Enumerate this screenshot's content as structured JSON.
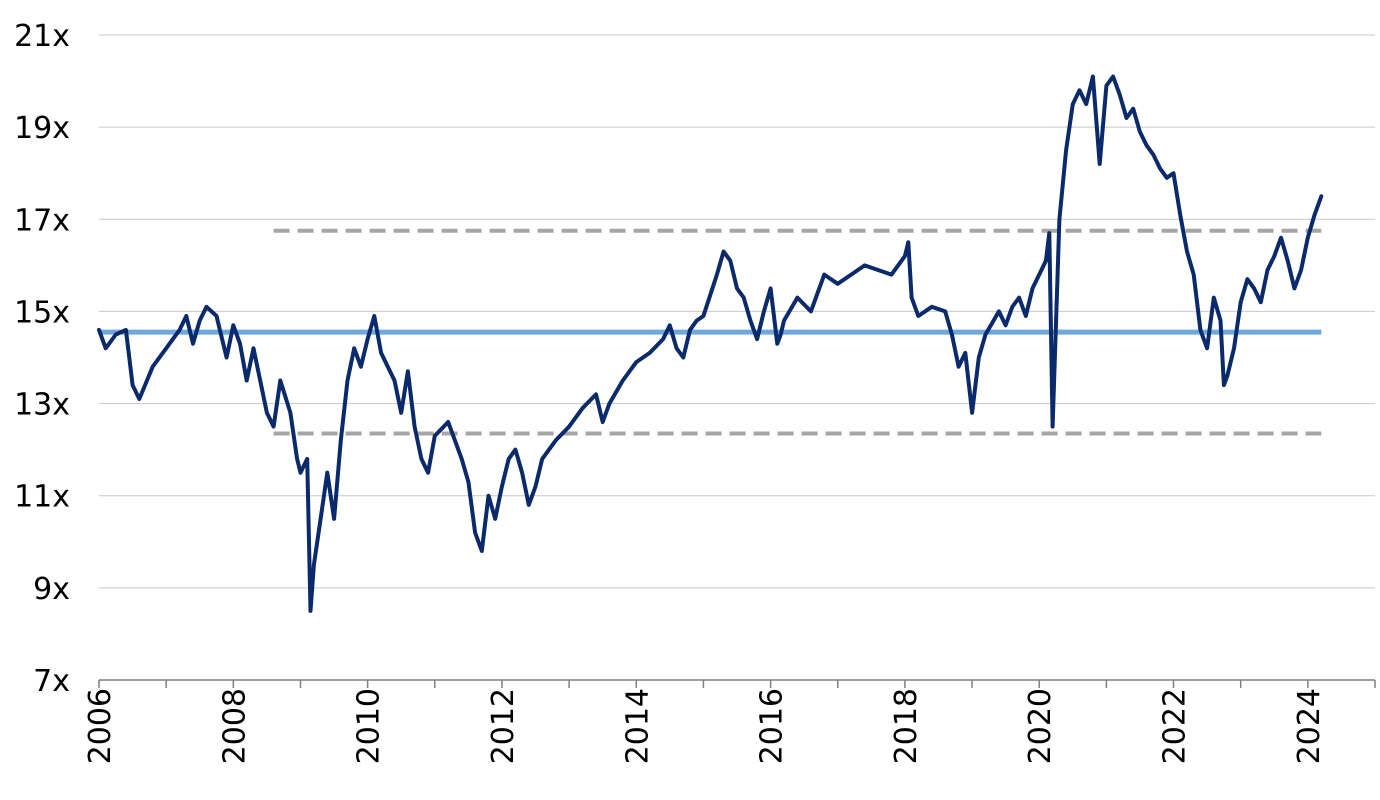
{
  "chart_data": {
    "type": "line",
    "title": "",
    "xlabel": "",
    "ylabel": "",
    "xlim": [
      2006,
      2025
    ],
    "ylim": [
      7,
      21
    ],
    "y_ticks": [
      7,
      9,
      11,
      13,
      15,
      17,
      19,
      21
    ],
    "y_tick_labels": [
      "7x",
      "9x",
      "11x",
      "13x",
      "15x",
      "17x",
      "19x",
      "21x"
    ],
    "x_ticks": [
      2006,
      2008,
      2010,
      2012,
      2014,
      2016,
      2018,
      2020,
      2022,
      2024
    ],
    "x_tick_labels": [
      "2006",
      "2008",
      "2010",
      "2012",
      "2014",
      "2016",
      "2018",
      "2020",
      "2022",
      "2024"
    ],
    "grid": "horizontal",
    "legend": "none",
    "reference_lines": [
      {
        "role": "average",
        "y": 14.55,
        "style": "solid",
        "color": "#6fa8dc"
      },
      {
        "role": "upper band",
        "y": 16.75,
        "style": "dashed",
        "color": "#a6a6a6"
      },
      {
        "role": "lower band",
        "y": 12.35,
        "style": "dashed",
        "color": "#a6a6a6"
      }
    ],
    "series": [
      {
        "color": "#0a2a6b",
        "x": [
          2006.0,
          2006.1,
          2006.25,
          2006.4,
          2006.5,
          2006.6,
          2006.8,
          2007.0,
          2007.1,
          2007.2,
          2007.3,
          2007.4,
          2007.5,
          2007.6,
          2007.75,
          2007.9,
          2008.0,
          2008.1,
          2008.2,
          2008.3,
          2008.5,
          2008.6,
          2008.7,
          2008.85,
          2008.95,
          2009.0,
          2009.1,
          2009.15,
          2009.2,
          2009.3,
          2009.4,
          2009.5,
          2009.6,
          2009.7,
          2009.8,
          2009.9,
          2010.0,
          2010.1,
          2010.2,
          2010.3,
          2010.4,
          2010.5,
          2010.6,
          2010.7,
          2010.8,
          2010.9,
          2011.0,
          2011.2,
          2011.4,
          2011.5,
          2011.6,
          2011.7,
          2011.8,
          2011.9,
          2012.0,
          2012.1,
          2012.2,
          2012.3,
          2012.4,
          2012.5,
          2012.6,
          2012.8,
          2013.0,
          2013.2,
          2013.4,
          2013.5,
          2013.6,
          2013.8,
          2014.0,
          2014.2,
          2014.4,
          2014.5,
          2014.6,
          2014.7,
          2014.8,
          2014.9,
          2015.0,
          2015.2,
          2015.3,
          2015.4,
          2015.5,
          2015.6,
          2015.7,
          2015.8,
          2015.9,
          2016.0,
          2016.1,
          2016.15,
          2016.2,
          2016.4,
          2016.6,
          2016.8,
          2017.0,
          2017.2,
          2017.4,
          2017.6,
          2017.8,
          2018.0,
          2018.05,
          2018.1,
          2018.2,
          2018.4,
          2018.6,
          2018.7,
          2018.8,
          2018.9,
          2019.0,
          2019.1,
          2019.2,
          2019.4,
          2019.5,
          2019.6,
          2019.7,
          2019.8,
          2019.9,
          2020.0,
          2020.1,
          2020.15,
          2020.2,
          2020.3,
          2020.4,
          2020.5,
          2020.6,
          2020.7,
          2020.8,
          2020.9,
          2021.0,
          2021.1,
          2021.2,
          2021.3,
          2021.4,
          2021.5,
          2021.6,
          2021.7,
          2021.8,
          2021.9,
          2022.0,
          2022.1,
          2022.2,
          2022.3,
          2022.4,
          2022.5,
          2022.6,
          2022.7,
          2022.75,
          2022.8,
          2022.9,
          2023.0,
          2023.1,
          2023.2,
          2023.3,
          2023.4,
          2023.5,
          2023.6,
          2023.7,
          2023.8,
          2023.9,
          2024.0,
          2024.1,
          2024.2
        ],
        "y": [
          14.6,
          14.2,
          14.5,
          14.6,
          13.4,
          13.1,
          13.8,
          14.2,
          14.4,
          14.6,
          14.9,
          14.3,
          14.8,
          15.1,
          14.9,
          14.0,
          14.7,
          14.3,
          13.5,
          14.2,
          12.8,
          12.5,
          13.5,
          12.8,
          11.8,
          11.5,
          11.8,
          8.5,
          9.5,
          10.5,
          11.5,
          10.5,
          12.2,
          13.5,
          14.2,
          13.8,
          14.4,
          14.9,
          14.1,
          13.8,
          13.5,
          12.8,
          13.7,
          12.5,
          11.8,
          11.5,
          12.3,
          12.6,
          11.8,
          11.3,
          10.2,
          9.8,
          11.0,
          10.5,
          11.2,
          11.8,
          12.0,
          11.5,
          10.8,
          11.2,
          11.8,
          12.2,
          12.5,
          12.9,
          13.2,
          12.6,
          13.0,
          13.5,
          13.9,
          14.1,
          14.4,
          14.7,
          14.2,
          14.0,
          14.6,
          14.8,
          14.9,
          15.8,
          16.3,
          16.1,
          15.5,
          15.3,
          14.8,
          14.4,
          15.0,
          15.5,
          14.3,
          14.5,
          14.8,
          15.3,
          15.0,
          15.8,
          15.6,
          15.8,
          16.0,
          15.9,
          15.8,
          16.2,
          16.5,
          15.3,
          14.9,
          15.1,
          15.0,
          14.5,
          13.8,
          14.1,
          12.8,
          14.0,
          14.5,
          15.0,
          14.7,
          15.1,
          15.3,
          14.9,
          15.5,
          15.8,
          16.1,
          16.7,
          12.5,
          17.0,
          18.5,
          19.5,
          19.8,
          19.5,
          20.1,
          18.2,
          19.9,
          20.1,
          19.7,
          19.2,
          19.4,
          18.9,
          18.6,
          18.4,
          18.1,
          17.9,
          18.0,
          17.1,
          16.3,
          15.8,
          14.6,
          14.2,
          15.3,
          14.8,
          13.4,
          13.6,
          14.2,
          15.2,
          15.7,
          15.5,
          15.2,
          15.9,
          16.2,
          16.6,
          16.1,
          15.5,
          15.9,
          16.6,
          17.1,
          17.5
        ]
      }
    ]
  }
}
